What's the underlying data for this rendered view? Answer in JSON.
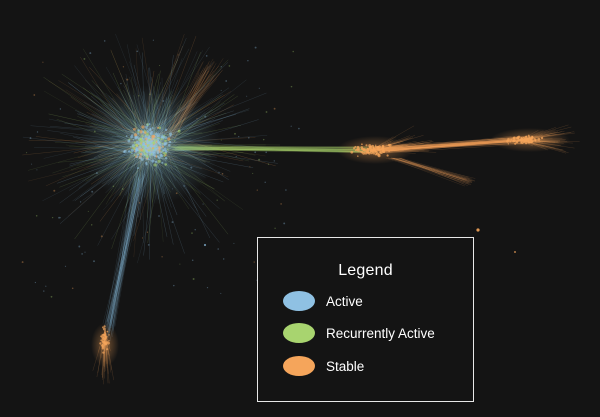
{
  "colors": {
    "background": "#141414",
    "active": "#8fc1e3",
    "recurrently_active": "#a8d46f",
    "stable": "#f5a55b",
    "legend_border": "#e8e8e8",
    "text": "#ffffff"
  },
  "legend": {
    "title": "Legend",
    "entries": [
      {
        "label": "Active",
        "color": "#8fc1e3"
      },
      {
        "label": "Recurrently Active",
        "color": "#a8d46f"
      },
      {
        "label": "Stable",
        "color": "#f5a55b"
      }
    ]
  }
}
